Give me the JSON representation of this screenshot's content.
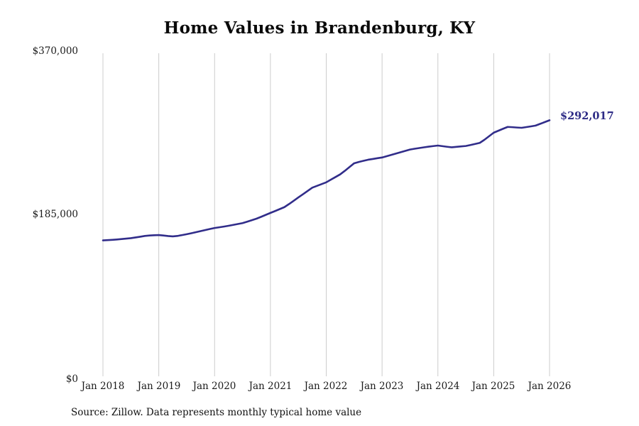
{
  "title": "Home Values in Brandenburg, KY",
  "source_note": "Source: Zillow. Data represents monthly typical home value",
  "colors": {
    "line": "#312d8a",
    "gridline": "#cccccc",
    "annotation": "#2d2b86"
  },
  "chart_data": {
    "type": "line",
    "title": "Home Values in Brandenburg, KY",
    "xlabel": "",
    "ylabel": "",
    "ylim": [
      0,
      370000
    ],
    "grid": "vertical-only",
    "y_tick_labels": [
      "$370,000",
      "$185,000",
      "$0"
    ],
    "y_tick_values": [
      370000,
      185000,
      0
    ],
    "x_tick_labels": [
      "Jan 2018",
      "Jan 2019",
      "Jan 2020",
      "Jan 2021",
      "Jan 2022",
      "Jan 2023",
      "Jan 2024",
      "Jan 2025",
      "Jan 2026"
    ],
    "x_start": "Jan 2018",
    "x_end": "Jan 2026",
    "x_interval": "monthly",
    "end_label": "$292,017",
    "end_value": 292017,
    "series": [
      {
        "name": "Typical home value",
        "color": "#312d8a",
        "values": [
          156500,
          156800,
          157100,
          157500,
          158000,
          158500,
          159000,
          159800,
          160600,
          161500,
          162000,
          162300,
          162500,
          162000,
          161400,
          161000,
          161500,
          162500,
          163500,
          164600,
          165800,
          167000,
          168200,
          169400,
          170500,
          171300,
          172100,
          173000,
          174000,
          175000,
          176000,
          177600,
          179300,
          181000,
          183100,
          185300,
          187500,
          189600,
          191800,
          194000,
          197500,
          201200,
          205000,
          208600,
          212300,
          216000,
          218000,
          220000,
          222000,
          225000,
          228000,
          231000,
          235000,
          239300,
          243500,
          245000,
          246300,
          247500,
          248300,
          249200,
          250000,
          251500,
          253000,
          254500,
          256000,
          257500,
          259000,
          259900,
          260700,
          261500,
          262200,
          262900,
          263500,
          262800,
          262100,
          261500,
          262000,
          262500,
          263000,
          264100,
          265300,
          266500,
          270000,
          274000,
          278000,
          280200,
          282400,
          284500,
          284200,
          283800,
          283500,
          284300,
          285100,
          286000,
          288000,
          290000,
          292017
        ]
      }
    ]
  }
}
